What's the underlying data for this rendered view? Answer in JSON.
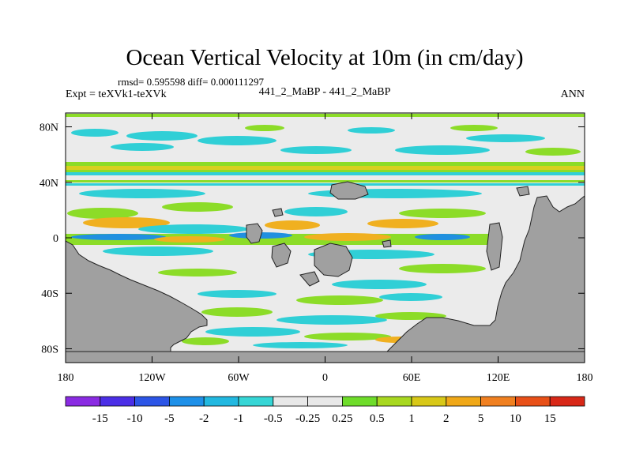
{
  "chart_data": {
    "type": "heatmap",
    "title": "Ocean Vertical Velocity at 10m (in cm/day)",
    "stats": "rmsd= 0.595598 diff= 0.000111297",
    "left_label": "Expt = teXVk1-teXVk",
    "center_label": "441_2_MaBP - 441_2_MaBP",
    "right_label": "ANN",
    "xlim": [
      -180,
      180
    ],
    "ylim": [
      -90,
      90
    ],
    "x_ticks": [
      {
        "value": -180,
        "label": "180"
      },
      {
        "value": -120,
        "label": "120W"
      },
      {
        "value": -60,
        "label": "60W"
      },
      {
        "value": 0,
        "label": "0"
      },
      {
        "value": 60,
        "label": "60E"
      },
      {
        "value": 120,
        "label": "120E"
      },
      {
        "value": 180,
        "label": "180"
      }
    ],
    "y_ticks": [
      {
        "value": 80,
        "label": "80N"
      },
      {
        "value": 40,
        "label": "40N"
      },
      {
        "value": 0,
        "label": "0"
      },
      {
        "value": -40,
        "label": "40S"
      },
      {
        "value": -80,
        "label": "80S"
      }
    ],
    "colorbar": {
      "colors": [
        "#8a2be2",
        "#4b2ee6",
        "#2c55e6",
        "#1e90e8",
        "#22b8e0",
        "#36d6d6",
        "#e8e8e8",
        "#e8e8e8",
        "#6edc2a",
        "#a8d820",
        "#d8c818",
        "#f0a818",
        "#f08020",
        "#e85018",
        "#d82818"
      ],
      "labels": [
        "-15",
        "-10",
        "-5",
        "-2",
        "-1",
        "-0.5",
        "-0.25",
        "0.25",
        "0.5",
        "1",
        "2",
        "5",
        "10",
        "15"
      ]
    },
    "colors": {
      "land": "#a0a0a0",
      "background_field": "#ebebeb",
      "green": "#8cdc28",
      "cyan": "#30cfd6",
      "orange": "#f0b020",
      "blue": "#2090e0",
      "yellow": "#d8d020"
    }
  }
}
